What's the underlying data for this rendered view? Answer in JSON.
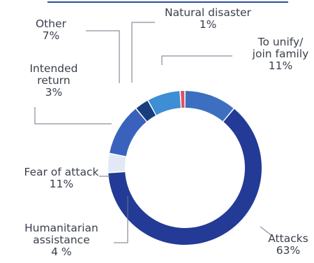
{
  "chart_data": {
    "type": "pie",
    "variant": "donut",
    "legend": "none",
    "colors": {
      "top_rule": "#2a4fa0",
      "leader": "#6e7585",
      "text": "#3a3f4e"
    },
    "slices": [
      {
        "name": "To unify/ join family",
        "lines": [
          "To unify/",
          "join family"
        ],
        "pct_text": "11%",
        "value": 11,
        "color": "#3c6fbf"
      },
      {
        "name": "Attacks",
        "lines": [
          "Attacks"
        ],
        "pct_text": "63%",
        "value": 63,
        "color": "#233a96"
      },
      {
        "name": "Humanitarian assistance",
        "lines": [
          "Humanitarian",
          "assistance"
        ],
        "pct_text": "4 %",
        "value": 4,
        "color": "#e3e8f6"
      },
      {
        "name": "Fear of attack",
        "lines": [
          "Fear of attack"
        ],
        "pct_text": "11%",
        "value": 11,
        "color": "#3a62bc"
      },
      {
        "name": "Intended return",
        "lines": [
          "Intended",
          "return"
        ],
        "pct_text": "3%",
        "value": 3,
        "color": "#173f7d"
      },
      {
        "name": "Other",
        "lines": [
          "Other"
        ],
        "pct_text": "7%",
        "value": 7,
        "color": "#3d8ed5"
      },
      {
        "name": "Natural disaster",
        "lines": [
          "Natural disaster"
        ],
        "pct_text": "1%",
        "value": 1,
        "color": "#e0525e"
      }
    ]
  }
}
